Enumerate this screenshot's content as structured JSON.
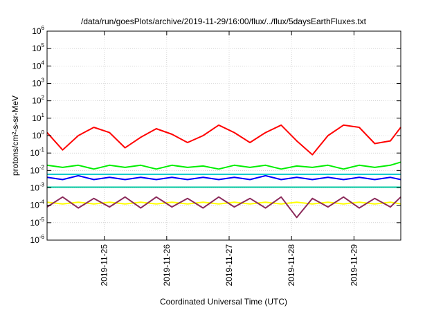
{
  "chart_data": {
    "type": "line",
    "title": "/data/run/goesPlots/archive/2019-11-29/16:00/flux/../flux/5daysEarthFluxes.txt",
    "xlabel": "Coordinated Universal Time (UTC)",
    "ylabel": "protons/cm²-s-sr-MeV",
    "yscale": "log",
    "ylim": [
      1e-06,
      1000000.0
    ],
    "xlim": [
      "2019-11-24T02:00",
      "2019-11-29T18:00"
    ],
    "grid": true,
    "y_tick_exponents": [
      -6,
      -5,
      -4,
      -3,
      -2,
      -1,
      0,
      1,
      2,
      3,
      4,
      5,
      6
    ],
    "x_ticks": [
      "2019-11-25",
      "2019-11-26",
      "2019-11-27",
      "2019-11-28",
      "2019-11-29"
    ],
    "x": [
      "2019-11-24T02:00",
      "2019-11-24T08:00",
      "2019-11-24T14:00",
      "2019-11-24T20:00",
      "2019-11-25T02:00",
      "2019-11-25T08:00",
      "2019-11-25T14:00",
      "2019-11-25T20:00",
      "2019-11-26T02:00",
      "2019-11-26T08:00",
      "2019-11-26T14:00",
      "2019-11-26T20:00",
      "2019-11-27T02:00",
      "2019-11-27T08:00",
      "2019-11-27T14:00",
      "2019-11-27T20:00",
      "2019-11-28T02:00",
      "2019-11-28T08:00",
      "2019-11-28T14:00",
      "2019-11-28T20:00",
      "2019-11-29T02:00",
      "2019-11-29T08:00",
      "2019-11-29T14:00",
      "2019-11-29T18:00"
    ],
    "series": [
      {
        "color": "#ff0000",
        "values": [
          1.5,
          0.15,
          1.0,
          3.0,
          1.5,
          0.2,
          0.8,
          2.5,
          1.2,
          0.4,
          1.0,
          4.0,
          1.5,
          0.4,
          1.5,
          4.0,
          0.5,
          0.08,
          1.0,
          4.0,
          3.0,
          0.35,
          0.5,
          3.0
        ]
      },
      {
        "color": "#00ee00",
        "values": [
          0.02,
          0.015,
          0.02,
          0.012,
          0.02,
          0.015,
          0.02,
          0.012,
          0.02,
          0.015,
          0.018,
          0.012,
          0.02,
          0.015,
          0.02,
          0.012,
          0.018,
          0.015,
          0.02,
          0.012,
          0.02,
          0.015,
          0.02,
          0.03
        ]
      },
      {
        "color": "#0000ff",
        "values": [
          0.004,
          0.003,
          0.005,
          0.003,
          0.004,
          0.003,
          0.004,
          0.003,
          0.004,
          0.003,
          0.004,
          0.003,
          0.004,
          0.003,
          0.005,
          0.003,
          0.004,
          0.003,
          0.004,
          0.003,
          0.004,
          0.003,
          0.004,
          0.003
        ]
      },
      {
        "color": "#00c8c8",
        "values": [
          0.006,
          0.006,
          0.006,
          0.006,
          0.006,
          0.006,
          0.006,
          0.006,
          0.006,
          0.006,
          0.006,
          0.006,
          0.006,
          0.006,
          0.006,
          0.006,
          0.006,
          0.006,
          0.006,
          0.006,
          0.006,
          0.006,
          0.006,
          0.006
        ]
      },
      {
        "color": "#00c8a0",
        "values": [
          0.0011,
          0.0011,
          0.0011,
          0.0011,
          0.0011,
          0.0011,
          0.0011,
          0.0011,
          0.0011,
          0.0011,
          0.0011,
          0.0011,
          0.0011,
          0.0011,
          0.0011,
          0.0011,
          0.0011,
          0.0011,
          0.0011,
          0.0011,
          0.0011,
          0.0011,
          0.0011,
          0.0011
        ]
      },
      {
        "color": "#ffff00",
        "values": [
          0.00015,
          0.00012,
          0.00015,
          0.00012,
          0.00015,
          0.00012,
          0.00015,
          0.00012,
          0.00015,
          0.00012,
          0.00015,
          0.00012,
          0.00015,
          0.00012,
          0.00015,
          0.00012,
          0.00015,
          0.00012,
          0.00015,
          0.00012,
          0.00015,
          0.00012,
          0.00015,
          0.00012
        ]
      },
      {
        "color": "#8b2a5a",
        "values": [
          8e-05,
          0.0003,
          7e-05,
          0.00025,
          8e-05,
          0.0003,
          7e-05,
          0.0003,
          8e-05,
          0.00025,
          7e-05,
          0.0003,
          8e-05,
          0.00025,
          7e-05,
          0.0003,
          2e-05,
          0.00025,
          8e-05,
          0.0003,
          7e-05,
          0.00025,
          8e-05,
          0.0003
        ]
      }
    ]
  }
}
